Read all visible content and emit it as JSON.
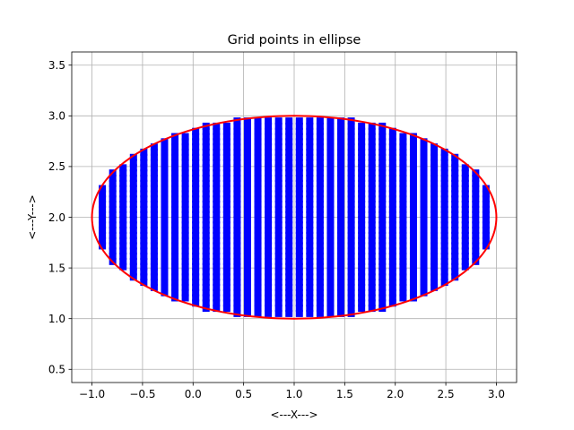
{
  "chart_data": {
    "type": "scatter",
    "title": "Grid points in ellipse",
    "xlabel": "<---X--->",
    "ylabel": "<---Y--->",
    "xlim": [
      -1.2,
      3.2
    ],
    "ylim": [
      0.37,
      3.63
    ],
    "xticks": [
      -1.0,
      -0.5,
      0.0,
      0.5,
      1.0,
      1.5,
      2.0,
      2.5,
      3.0
    ],
    "xtick_labels": [
      "−1.0",
      "−0.5",
      "0.0",
      "0.5",
      "1.0",
      "1.5",
      "2.0",
      "2.5",
      "3.0"
    ],
    "yticks": [
      0.5,
      1.0,
      1.5,
      2.0,
      2.5,
      3.0,
      3.5
    ],
    "ytick_labels": [
      "0.5",
      "1.0",
      "1.5",
      "2.0",
      "2.5",
      "3.0",
      "3.5"
    ],
    "grid": true,
    "ellipse": {
      "center": [
        1.0,
        2.0
      ],
      "semi_axis_x": 2.0,
      "semi_axis_y": 1.0,
      "color": "#ff0000"
    },
    "points": {
      "color": "#0000ff",
      "marker": "square",
      "x_min": -1.0,
      "x_max": 3.0,
      "x_count": 40,
      "y_min": 1.0,
      "y_max": 3.0,
      "y_count": 40
    }
  }
}
